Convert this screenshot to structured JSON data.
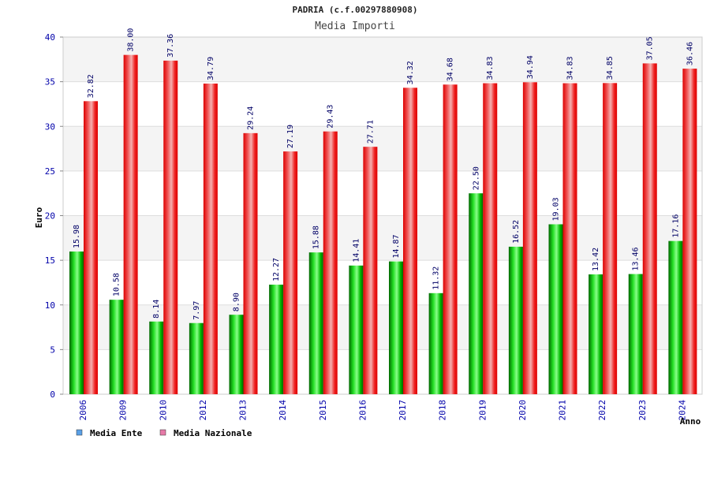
{
  "chart_data": {
    "type": "bar",
    "title": "PADRIA (c.f.00297880908)",
    "subtitle": "Media Importi",
    "xlabel": "Anno",
    "ylabel": "Euro",
    "ylim": [
      0,
      40
    ],
    "yticks": [
      0,
      5,
      10,
      15,
      20,
      25,
      30,
      35,
      40
    ],
    "grid": true,
    "legend_position": "bottom-left",
    "categories": [
      "2006",
      "2009",
      "2010",
      "2012",
      "2013",
      "2014",
      "2015",
      "2016",
      "2017",
      "2018",
      "2019",
      "2020",
      "2021",
      "2022",
      "2023",
      "2024"
    ],
    "series": [
      {
        "name": "Media Ente",
        "color": "#00c000",
        "legend_color": "#5aa0e6",
        "values": [
          15.98,
          10.58,
          8.14,
          7.97,
          8.9,
          12.27,
          15.88,
          14.41,
          14.87,
          11.32,
          22.5,
          16.52,
          19.03,
          13.42,
          13.46,
          17.16
        ],
        "labels": [
          "15.98",
          "10.58",
          "8.14",
          "7.97",
          "8.90",
          "12.27",
          "15.88",
          "14.41",
          "14.87",
          "11.32",
          "22.50",
          "16.52",
          "19.03",
          "13.42",
          "13.46",
          "17.16"
        ]
      },
      {
        "name": "Media Nazionale",
        "color": "#ee1111",
        "legend_color": "#e67aa8",
        "values": [
          32.82,
          38.0,
          37.36,
          34.79,
          29.24,
          27.19,
          29.43,
          27.71,
          34.32,
          34.68,
          34.83,
          34.94,
          34.83,
          34.85,
          37.05,
          36.46
        ],
        "labels": [
          "32.82",
          "38.00",
          "37.36",
          "34.79",
          "29.24",
          "27.19",
          "29.43",
          "27.71",
          "34.32",
          "34.68",
          "34.83",
          "34.94",
          "34.83",
          "34.85",
          "37.05",
          "36.46"
        ]
      }
    ]
  }
}
